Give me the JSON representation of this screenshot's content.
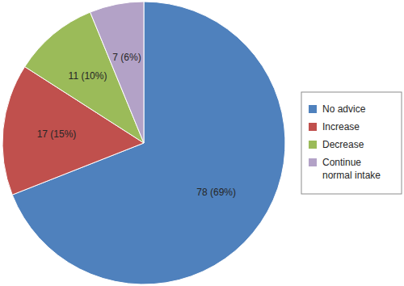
{
  "chart_data": {
    "type": "pie",
    "categories": [
      "No advice",
      "Increase",
      "Decrease",
      "Continue normal intake"
    ],
    "values": [
      78,
      17,
      11,
      7
    ],
    "value_labels": [
      "78 (69%)",
      "17 (15%)",
      "11 (10%)",
      "7 (6%)"
    ],
    "colors": [
      "#4f81bd",
      "#c0504d",
      "#9bbb59",
      "#b3a2c7"
    ],
    "data_labels": true,
    "legend": "right"
  }
}
